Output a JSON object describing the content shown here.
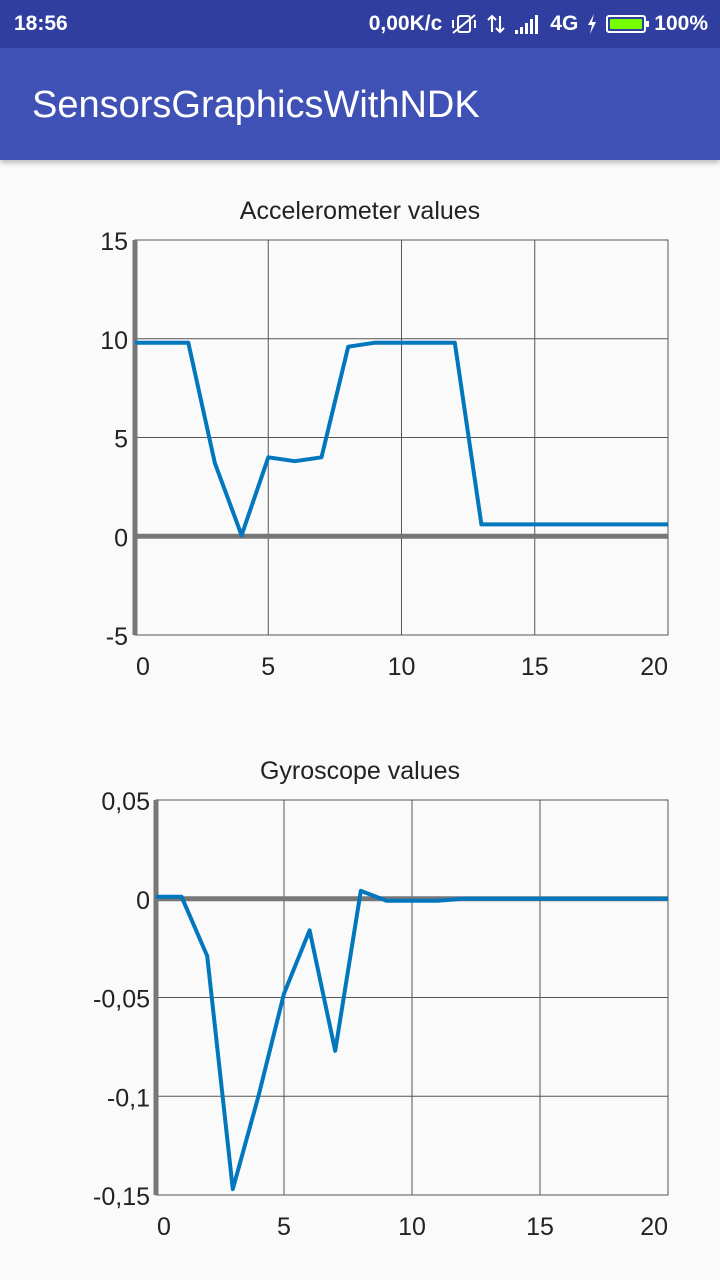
{
  "status_bar": {
    "time": "18:56",
    "network_speed": "0,00K/c",
    "network_type": "4G",
    "battery": "100%",
    "icons": [
      "vibrate-off-icon",
      "data-transfer-icon",
      "signal-icon",
      "charging-icon",
      "battery-icon"
    ],
    "battery_color": "#76ff03"
  },
  "app_bar": {
    "title": "SensorsGraphicsWithNDK",
    "color": "#3f51b5"
  },
  "chart_data": [
    {
      "type": "line",
      "title": "Accelerometer values",
      "xlim": [
        0,
        20
      ],
      "ylim": [
        -5,
        15
      ],
      "x_ticks": [
        0,
        5,
        10,
        15,
        20
      ],
      "y_ticks": [
        -5,
        0,
        5,
        10,
        15
      ],
      "x_tick_labels": [
        "0",
        "5",
        "10",
        "15",
        "20"
      ],
      "y_tick_labels": [
        "-5",
        "0",
        "5",
        "10",
        "15"
      ],
      "grid": true,
      "line_color": "#0277bd",
      "x": [
        0,
        1,
        2,
        3,
        4,
        5,
        6,
        7,
        8,
        9,
        10,
        11,
        12,
        13,
        14,
        15,
        16,
        17,
        18,
        19,
        20
      ],
      "values": [
        9.8,
        9.8,
        9.8,
        3.7,
        0.05,
        4.0,
        3.8,
        4.0,
        9.6,
        9.8,
        9.8,
        9.8,
        9.8,
        0.6,
        0.6,
        0.6,
        0.6,
        0.6,
        0.6,
        0.6,
        0.6
      ]
    },
    {
      "type": "line",
      "title": "Gyroscope values",
      "xlim": [
        0,
        20
      ],
      "ylim": [
        -0.15,
        0.05
      ],
      "x_ticks": [
        0,
        5,
        10,
        15,
        20
      ],
      "y_ticks": [
        -0.15,
        -0.1,
        -0.05,
        0,
        0.05
      ],
      "x_tick_labels": [
        "0",
        "5",
        "10",
        "15",
        "20"
      ],
      "y_tick_labels": [
        "-0,15",
        "-0,1",
        "-0,05",
        "0",
        "0,05"
      ],
      "grid": true,
      "line_color": "#0277bd",
      "x": [
        0,
        1,
        2,
        3,
        4,
        5,
        6,
        7,
        8,
        9,
        10,
        11,
        12,
        13,
        14,
        15,
        16,
        17,
        18,
        19,
        20
      ],
      "values": [
        0.001,
        0.001,
        -0.029,
        -0.147,
        -0.1,
        -0.048,
        -0.016,
        -0.077,
        0.004,
        -0.001,
        -0.001,
        -0.001,
        0,
        0,
        0,
        0,
        0,
        0,
        0,
        0,
        0
      ]
    }
  ]
}
